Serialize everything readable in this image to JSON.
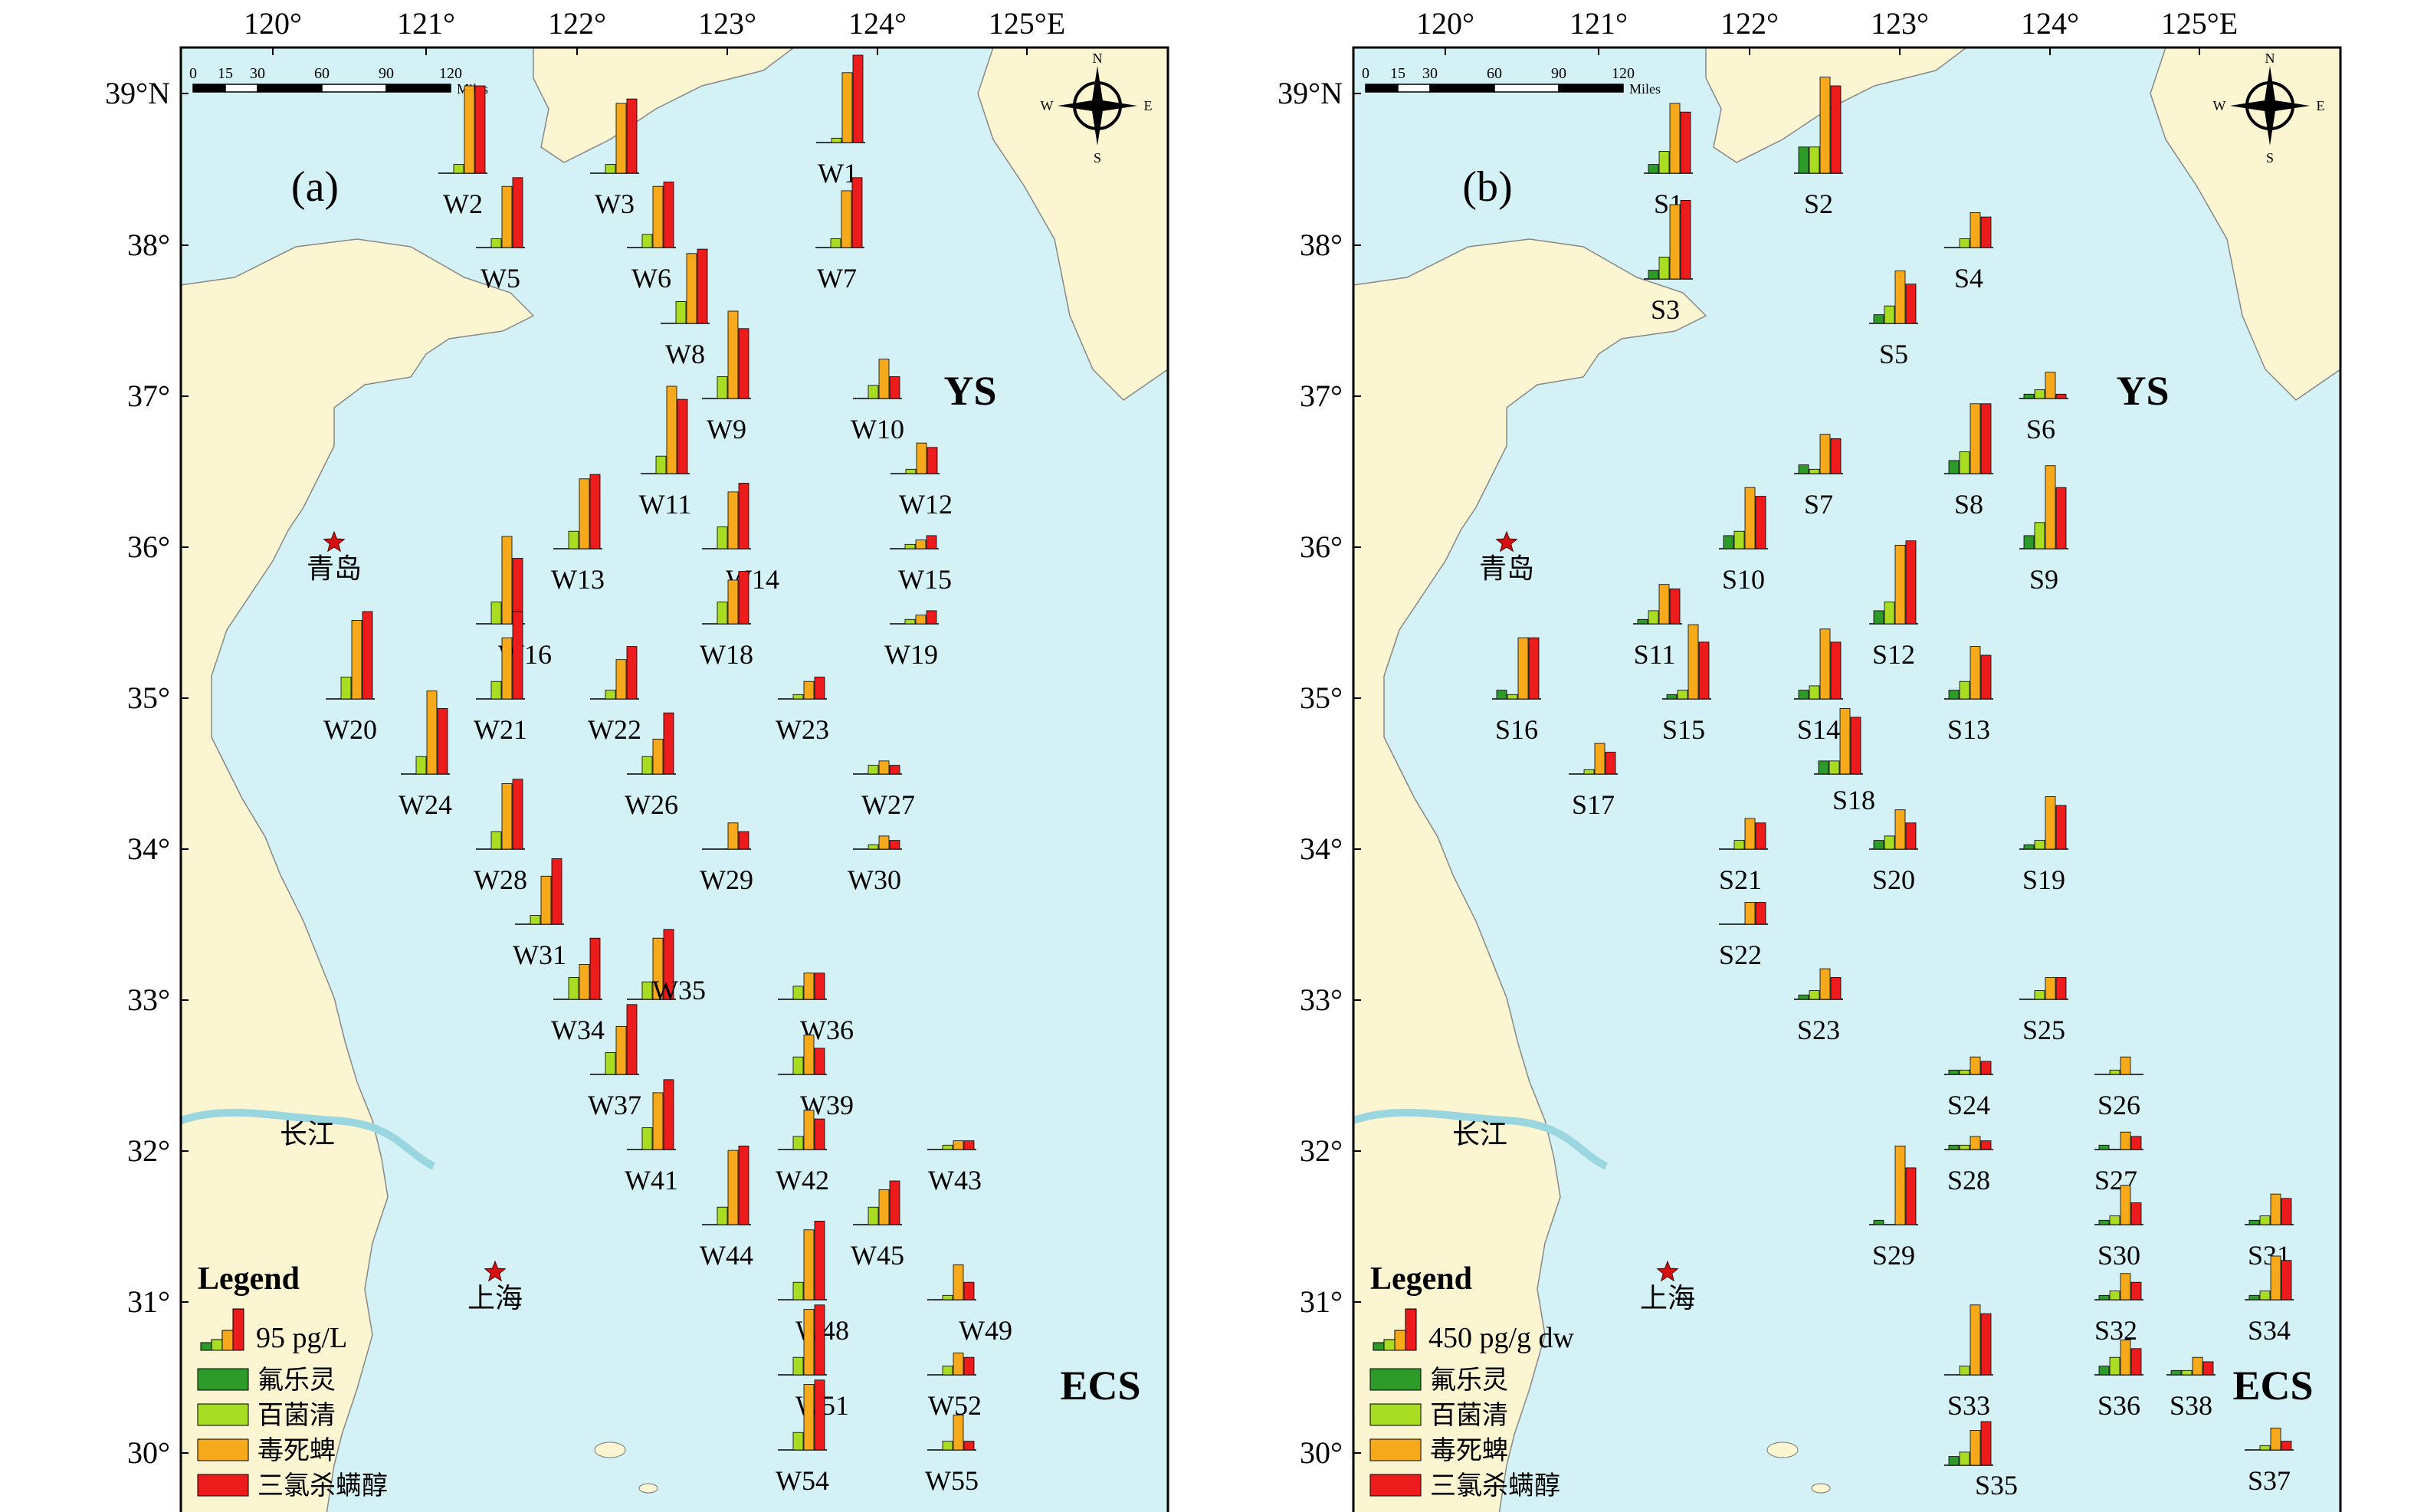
{
  "colors": {
    "sea": "#d4f2f5",
    "land": "#fcf5d2",
    "frame": "#000000",
    "series": [
      "#2e9a2a",
      "#a9dd23",
      "#f6a91a",
      "#ec1c1c"
    ],
    "city_star": "#d41111"
  },
  "panels": [
    {
      "id": "a",
      "panel_label": "(a)",
      "sea_labels": [
        "YS",
        "ECS"
      ],
      "legend": {
        "title": "Legend",
        "scale_text": "95 pg/L",
        "items": [
          "氟乐灵",
          "百菌清",
          "毒死蜱",
          "三氯杀螨醇"
        ]
      },
      "stations": [
        {
          "name": "W1",
          "values": [
            0,
            5,
            80,
            100
          ]
        },
        {
          "name": "W2",
          "values": [
            0,
            10,
            100,
            100
          ]
        },
        {
          "name": "W3",
          "values": [
            0,
            10,
            80,
            85
          ]
        },
        {
          "name": "W5",
          "values": [
            0,
            10,
            70,
            80
          ]
        },
        {
          "name": "W6",
          "values": [
            0,
            15,
            70,
            75
          ]
        },
        {
          "name": "W7",
          "values": [
            0,
            10,
            65,
            80
          ]
        },
        {
          "name": "W8",
          "values": [
            0,
            25,
            80,
            85
          ]
        },
        {
          "name": "W9",
          "values": [
            0,
            25,
            100,
            80
          ]
        },
        {
          "name": "W10",
          "values": [
            0,
            15,
            45,
            25
          ]
        },
        {
          "name": "W11",
          "values": [
            0,
            20,
            100,
            85
          ]
        },
        {
          "name": "W12",
          "values": [
            0,
            5,
            35,
            30
          ]
        },
        {
          "name": "W13",
          "values": [
            0,
            20,
            80,
            85
          ]
        },
        {
          "name": "W14",
          "values": [
            0,
            25,
            65,
            75
          ]
        },
        {
          "name": "W15",
          "values": [
            0,
            5,
            10,
            15
          ]
        },
        {
          "name": "W16",
          "values": [
            0,
            25,
            100,
            75
          ]
        },
        {
          "name": "W18",
          "values": [
            0,
            25,
            50,
            60
          ]
        },
        {
          "name": "W19",
          "values": [
            0,
            5,
            10,
            15
          ]
        },
        {
          "name": "W20",
          "values": [
            0,
            25,
            90,
            100
          ]
        },
        {
          "name": "W21",
          "values": [
            0,
            20,
            70,
            100
          ]
        },
        {
          "name": "W22",
          "values": [
            0,
            10,
            45,
            60
          ]
        },
        {
          "name": "W23",
          "values": [
            0,
            5,
            20,
            25
          ]
        },
        {
          "name": "W24",
          "values": [
            0,
            20,
            95,
            75
          ]
        },
        {
          "name": "W26",
          "values": [
            0,
            20,
            40,
            70
          ]
        },
        {
          "name": "W27",
          "values": [
            0,
            10,
            15,
            10
          ]
        },
        {
          "name": "W28",
          "values": [
            0,
            20,
            75,
            80
          ]
        },
        {
          "name": "W29",
          "values": [
            0,
            0,
            30,
            20
          ]
        },
        {
          "name": "W30",
          "values": [
            0,
            5,
            15,
            10
          ]
        },
        {
          "name": "W31",
          "values": [
            0,
            10,
            55,
            75
          ]
        },
        {
          "name": "W34",
          "values": [
            0,
            25,
            40,
            70
          ]
        },
        {
          "name": "W35",
          "values": [
            0,
            20,
            70,
            80
          ]
        },
        {
          "name": "W36",
          "values": [
            0,
            15,
            30,
            30
          ]
        },
        {
          "name": "W37",
          "values": [
            0,
            25,
            55,
            80
          ]
        },
        {
          "name": "W39",
          "values": [
            0,
            20,
            45,
            30
          ]
        },
        {
          "name": "W41",
          "values": [
            0,
            25,
            65,
            80
          ]
        },
        {
          "name": "W42",
          "values": [
            0,
            15,
            45,
            35
          ]
        },
        {
          "name": "W43",
          "values": [
            0,
            5,
            10,
            10
          ]
        },
        {
          "name": "W44",
          "values": [
            0,
            20,
            85,
            90
          ]
        },
        {
          "name": "W45",
          "values": [
            0,
            20,
            40,
            50
          ]
        },
        {
          "name": "W48",
          "values": [
            0,
            20,
            80,
            90
          ]
        },
        {
          "name": "W49",
          "values": [
            0,
            5,
            40,
            20
          ]
        },
        {
          "name": "W51",
          "values": [
            0,
            20,
            75,
            80
          ]
        },
        {
          "name": "W52",
          "values": [
            0,
            10,
            25,
            20
          ]
        },
        {
          "name": "W54",
          "values": [
            0,
            20,
            75,
            80
          ]
        },
        {
          "name": "W55",
          "values": [
            0,
            10,
            40,
            10
          ]
        }
      ]
    },
    {
      "id": "b",
      "panel_label": "(b)",
      "sea_labels": [
        "YS",
        "ECS"
      ],
      "legend": {
        "title": "Legend",
        "scale_text": "450 pg/g dw",
        "items": [
          "氟乐灵",
          "百菌清",
          "毒死蜱",
          "三氯杀螨醇"
        ]
      },
      "stations": [
        {
          "name": "S1",
          "values": [
            10,
            25,
            80,
            70
          ]
        },
        {
          "name": "S2",
          "values": [
            30,
            30,
            110,
            100
          ]
        },
        {
          "name": "S3",
          "values": [
            10,
            25,
            85,
            90
          ]
        },
        {
          "name": "S4",
          "values": [
            0,
            10,
            40,
            35
          ]
        },
        {
          "name": "S5",
          "values": [
            10,
            20,
            60,
            45
          ]
        },
        {
          "name": "S6",
          "values": [
            5,
            10,
            30,
            5
          ]
        },
        {
          "name": "S7",
          "values": [
            10,
            5,
            45,
            40
          ]
        },
        {
          "name": "S8",
          "values": [
            15,
            25,
            80,
            80
          ]
        },
        {
          "name": "S9",
          "values": [
            15,
            30,
            95,
            70
          ]
        },
        {
          "name": "S10",
          "values": [
            15,
            20,
            70,
            60
          ]
        },
        {
          "name": "S11",
          "values": [
            5,
            15,
            45,
            40
          ]
        },
        {
          "name": "S12",
          "values": [
            15,
            25,
            90,
            95
          ]
        },
        {
          "name": "S13",
          "values": [
            10,
            20,
            60,
            50
          ]
        },
        {
          "name": "S14",
          "values": [
            10,
            15,
            80,
            65
          ]
        },
        {
          "name": "S15",
          "values": [
            5,
            10,
            85,
            65
          ]
        },
        {
          "name": "S16",
          "values": [
            10,
            5,
            70,
            70
          ]
        },
        {
          "name": "S17",
          "values": [
            0,
            5,
            35,
            25
          ]
        },
        {
          "name": "S18",
          "values": [
            15,
            15,
            75,
            65
          ]
        },
        {
          "name": "S19",
          "values": [
            5,
            10,
            60,
            50
          ]
        },
        {
          "name": "S20",
          "values": [
            10,
            15,
            45,
            30
          ]
        },
        {
          "name": "S21",
          "values": [
            0,
            10,
            35,
            30
          ]
        },
        {
          "name": "S22",
          "values": [
            0,
            0,
            25,
            25
          ]
        },
        {
          "name": "S23",
          "values": [
            5,
            10,
            35,
            25
          ]
        },
        {
          "name": "S24",
          "values": [
            5,
            5,
            20,
            15
          ]
        },
        {
          "name": "S25",
          "values": [
            0,
            10,
            25,
            25
          ]
        },
        {
          "name": "S26",
          "values": [
            0,
            5,
            20,
            0
          ]
        },
        {
          "name": "S27",
          "values": [
            5,
            0,
            20,
            15
          ]
        },
        {
          "name": "S28",
          "values": [
            5,
            5,
            15,
            10
          ]
        },
        {
          "name": "S29",
          "values": [
            5,
            0,
            90,
            65
          ]
        },
        {
          "name": "S30",
          "values": [
            5,
            10,
            45,
            25
          ]
        },
        {
          "name": "S31",
          "values": [
            5,
            10,
            35,
            30
          ]
        },
        {
          "name": "S32",
          "values": [
            5,
            10,
            30,
            20
          ]
        },
        {
          "name": "S33",
          "values": [
            0,
            10,
            80,
            70
          ]
        },
        {
          "name": "S34",
          "values": [
            5,
            10,
            50,
            45
          ]
        },
        {
          "name": "S35",
          "values": [
            10,
            15,
            40,
            50
          ]
        },
        {
          "name": "S36",
          "values": [
            10,
            20,
            40,
            30
          ]
        },
        {
          "name": "S37",
          "values": [
            0,
            5,
            25,
            10
          ]
        },
        {
          "name": "S38",
          "values": [
            5,
            5,
            20,
            15
          ]
        }
      ]
    }
  ],
  "map": {
    "lon_labels": [
      "120°",
      "121°",
      "122°",
      "123°",
      "124°",
      "125°E"
    ],
    "lat_labels": [
      "39°N",
      "38°",
      "37°",
      "36°",
      "35°",
      "34°",
      "33°",
      "32°",
      "31°",
      "30°"
    ],
    "cities": [
      {
        "name": "青岛"
      },
      {
        "name": "上海"
      }
    ],
    "river_label": "长江",
    "scale_bar": {
      "ticks": [
        "0",
        "15",
        "30",
        "60",
        "90",
        "120"
      ],
      "unit": "Miles"
    },
    "compass": {
      "n": "N",
      "s": "S",
      "e": "E",
      "w": "W"
    }
  }
}
